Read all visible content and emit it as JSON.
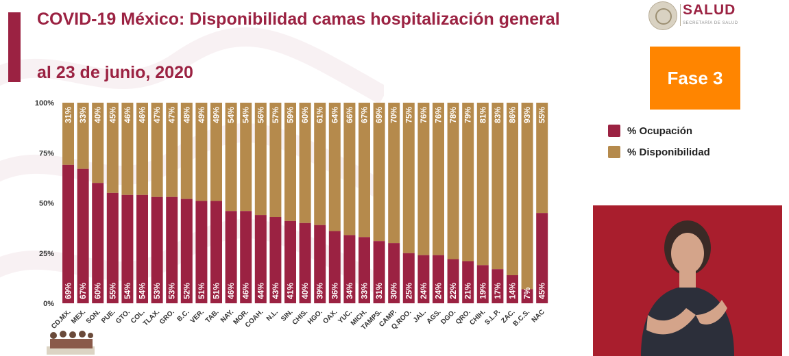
{
  "header": {
    "title": "COVID-19 México: Disponibilidad camas hospitalización general",
    "subtitle": "al 23 de junio, 2020"
  },
  "logo": {
    "name": "SALUD",
    "tagline": "SECRETARÍA DE SALUD",
    "icon": "national-seal-icon"
  },
  "fase": {
    "label": "Fase 3"
  },
  "legend": {
    "items": [
      {
        "label": "% Ocupación",
        "color": "#9b2242"
      },
      {
        "label": "% Disponibilidad",
        "color": "#b58a4c"
      }
    ]
  },
  "interpreter": {
    "icon": "sign-language-interpreter-video"
  },
  "colors": {
    "accent": "#9b2242",
    "ocupacion": "#9b2242",
    "disponibilidad": "#b58a4c",
    "fase": "#ff8500"
  },
  "chart_data": {
    "type": "bar",
    "stacked": true,
    "percent": true,
    "categories": [
      "CD.MX.",
      "MEX.",
      "SON.",
      "PUE.",
      "GTO.",
      "COL.",
      "TLAX.",
      "GRO.",
      "B.C.",
      "VER.",
      "TAB.",
      "NAY.",
      "MOR.",
      "COAH.",
      "N.L.",
      "SIN.",
      "CHIS.",
      "HGO.",
      "OAX.",
      "YUC.",
      "MICH.",
      "TAMPS.",
      "CAMP.",
      "Q.ROO.",
      "JAL.",
      "AGS.",
      "DGO.",
      "QRO.",
      "CHIH.",
      "S.L.P.",
      "ZAC.",
      "B.C.S.",
      "NAC"
    ],
    "series": [
      {
        "name": "% Ocupación",
        "values": [
          69,
          67,
          60,
          55,
          54,
          54,
          53,
          53,
          52,
          51,
          51,
          46,
          46,
          44,
          43,
          41,
          40,
          39,
          36,
          34,
          33,
          31,
          30,
          25,
          24,
          24,
          22,
          21,
          19,
          17,
          14,
          7,
          45
        ],
        "labels": [
          "69%",
          "67%",
          "60%",
          "55%",
          "54%",
          "54%",
          "53%",
          "53%",
          "52%",
          "51%",
          "51%",
          "46%",
          "46%",
          "44%",
          "43%",
          "41%",
          "40%",
          "39%",
          "36%",
          "34%",
          "33%",
          "31%",
          "30%",
          "25%",
          "24%",
          "24%",
          "22%",
          "21%",
          "19%",
          "17%",
          "14%",
          "7%",
          "45%"
        ]
      },
      {
        "name": "% Disponibilidad",
        "values": [
          31,
          33,
          40,
          45,
          46,
          46,
          47,
          47,
          48,
          49,
          49,
          54,
          54,
          56,
          57,
          59,
          60,
          61,
          64,
          66,
          67,
          69,
          70,
          75,
          76,
          76,
          78,
          79,
          81,
          83,
          86,
          93,
          55
        ],
        "labels": [
          "31%",
          "33%",
          "40%",
          "45%",
          "46%",
          "46%",
          "47%",
          "47%",
          "48%",
          "49%",
          "49%",
          "54%",
          "54%",
          "56%",
          "57%",
          "59%",
          "60%",
          "61%",
          "64%",
          "66%",
          "67%",
          "69%",
          "70%",
          "75%",
          "76%",
          "76%",
          "78%",
          "79%",
          "81%",
          "83%",
          "86%",
          "93%",
          "55%"
        ]
      }
    ],
    "y_ticks": [
      "0%",
      "25%",
      "50%",
      "75%",
      "100%"
    ],
    "ylim": [
      0,
      100
    ]
  }
}
